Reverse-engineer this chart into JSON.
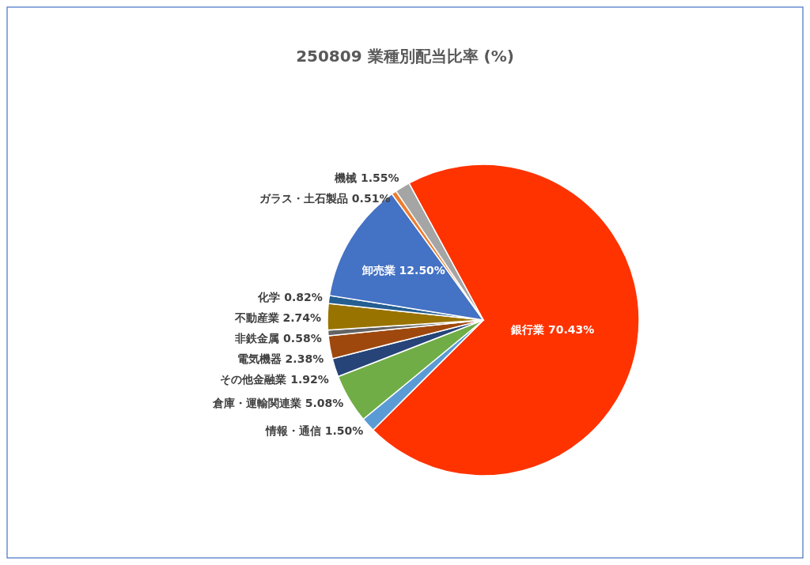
{
  "chart_data": {
    "type": "pie",
    "title": "250809 業種別配当比率 (%)",
    "categories": [
      "銀行業",
      "情報・通信",
      "倉庫・運輸関連業",
      "その他金融業",
      "電気機器",
      "非鉄金属",
      "不動産業",
      "化学",
      "卸売業",
      "ガラス・土石製品",
      "機械"
    ],
    "values": [
      70.43,
      1.5,
      5.08,
      1.92,
      2.38,
      0.58,
      2.74,
      0.82,
      12.5,
      0.51,
      1.55
    ],
    "value_labels": [
      "70.43%",
      "1.50%",
      "5.08%",
      "1.92%",
      "2.38%",
      "0.58%",
      "2.74%",
      "0.82%",
      "12.50%",
      "0.51%",
      "1.55%"
    ],
    "colors": [
      "#ff3300",
      "#5b9bd5",
      "#70ad47",
      "#264478",
      "#9e480e",
      "#636363",
      "#997300",
      "#255e91",
      "#4472c4",
      "#ed7d31",
      "#a5a5a5"
    ],
    "legend": false
  }
}
